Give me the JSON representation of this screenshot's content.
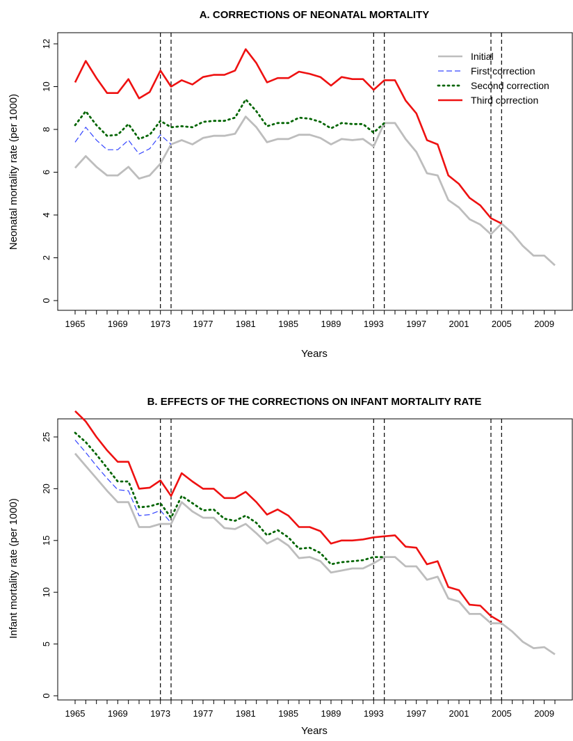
{
  "chart_data": [
    {
      "type": "line",
      "title": "A. CORRECTIONS OF NEONATAL MORTALITY",
      "xlabel": "Years",
      "ylabel": "Neonatal mortality rate (per 1000)",
      "xlim": [
        1965,
        2010
      ],
      "ylim": [
        0,
        12
      ],
      "x_ticks": [
        "1965",
        "1969",
        "1973",
        "1977",
        "1981",
        "1985",
        "1989",
        "1993",
        "1997",
        "2001",
        "2005",
        "2009"
      ],
      "y_ticks": [
        "0",
        "2",
        "4",
        "6",
        "8",
        "10",
        "12"
      ],
      "vlines": [
        1973,
        1974,
        1993,
        1994,
        2004,
        2005
      ],
      "legend_position": "top-right",
      "series": [
        {
          "name": "Initial",
          "color": "#bdbdbd",
          "style": "solid",
          "x": [
            1965,
            1966,
            1967,
            1968,
            1969,
            1970,
            1971,
            1972,
            1973,
            1974,
            1975,
            1976,
            1977,
            1978,
            1979,
            1980,
            1981,
            1982,
            1983,
            1984,
            1985,
            1986,
            1987,
            1988,
            1989,
            1990,
            1991,
            1992,
            1993,
            1994,
            1995,
            1996,
            1997,
            1998,
            1999,
            2000,
            2001,
            2002,
            2003,
            2004,
            2005,
            2006,
            2007,
            2008,
            2009,
            2010
          ],
          "values": [
            6.2,
            6.75,
            6.25,
            5.85,
            5.85,
            6.25,
            5.7,
            5.85,
            6.4,
            7.3,
            7.5,
            7.3,
            7.6,
            7.7,
            7.7,
            7.8,
            8.6,
            8.1,
            7.4,
            7.55,
            7.55,
            7.75,
            7.75,
            7.6,
            7.3,
            7.55,
            7.5,
            7.55,
            7.2,
            8.3,
            8.3,
            7.55,
            6.95,
            5.95,
            5.85,
            4.7,
            4.35,
            3.8,
            3.55,
            3.1,
            3.6,
            3.15,
            2.55,
            2.1,
            2.1,
            1.65
          ]
        },
        {
          "name": "First correction",
          "color": "#3344ff",
          "style": "dashed",
          "x": [
            1965,
            1966,
            1967,
            1968,
            1969,
            1970,
            1971,
            1972,
            1973,
            1974
          ],
          "values": [
            7.4,
            8.1,
            7.5,
            7.05,
            7.05,
            7.5,
            6.85,
            7.1,
            7.75,
            7.3
          ]
        },
        {
          "name": "Second correction",
          "color": "#006400",
          "style": "dotted",
          "x": [
            1965,
            1966,
            1967,
            1968,
            1969,
            1970,
            1971,
            1972,
            1973,
            1974,
            1975,
            1976,
            1977,
            1978,
            1979,
            1980,
            1981,
            1982,
            1983,
            1984,
            1985,
            1986,
            1987,
            1988,
            1989,
            1990,
            1991,
            1992,
            1993,
            1994
          ],
          "values": [
            8.2,
            8.85,
            8.2,
            7.7,
            7.75,
            8.25,
            7.55,
            7.75,
            8.4,
            8.1,
            8.15,
            8.1,
            8.35,
            8.4,
            8.4,
            8.55,
            9.4,
            8.85,
            8.15,
            8.3,
            8.3,
            8.55,
            8.5,
            8.35,
            8.05,
            8.3,
            8.25,
            8.25,
            7.85,
            8.3
          ]
        },
        {
          "name": "Third correction",
          "color": "#ee1111",
          "style": "solid",
          "x": [
            1965,
            1966,
            1967,
            1968,
            1969,
            1970,
            1971,
            1972,
            1973,
            1974,
            1975,
            1976,
            1977,
            1978,
            1979,
            1980,
            1981,
            1982,
            1983,
            1984,
            1985,
            1986,
            1987,
            1988,
            1989,
            1990,
            1991,
            1992,
            1993,
            1994,
            1995,
            1996,
            1997,
            1998,
            1999,
            2000,
            2001,
            2002,
            2003,
            2004,
            2005
          ],
          "values": [
            10.2,
            11.2,
            10.4,
            9.7,
            9.7,
            10.35,
            9.45,
            9.75,
            10.75,
            10.0,
            10.3,
            10.1,
            10.45,
            10.55,
            10.55,
            10.75,
            11.75,
            11.1,
            10.2,
            10.4,
            10.4,
            10.7,
            10.6,
            10.45,
            10.05,
            10.45,
            10.35,
            10.35,
            9.85,
            10.3,
            10.3,
            9.35,
            8.75,
            7.5,
            7.3,
            5.85,
            5.45,
            4.8,
            4.45,
            3.85,
            3.6
          ]
        }
      ]
    },
    {
      "type": "line",
      "title": "B. EFFECTS OF THE CORRECTIONS ON INFANT MORTALITY RATE",
      "xlabel": "Years",
      "ylabel": "Infant mortality rate (per 1000)",
      "xlim": [
        1965,
        2010
      ],
      "ylim": [
        0,
        27.5
      ],
      "x_ticks": [
        "1965",
        "1969",
        "1973",
        "1977",
        "1981",
        "1985",
        "1989",
        "1993",
        "1997",
        "2001",
        "2005",
        "2009"
      ],
      "y_ticks": [
        "0",
        "5",
        "10",
        "15",
        "20",
        "25"
      ],
      "vlines": [
        1973,
        1974,
        1993,
        1994,
        2004,
        2005
      ],
      "series": [
        {
          "name": "Initial",
          "color": "#bdbdbd",
          "style": "solid",
          "x": [
            1965,
            1966,
            1967,
            1968,
            1969,
            1970,
            1971,
            1972,
            1973,
            1974,
            1975,
            1976,
            1977,
            1978,
            1979,
            1980,
            1981,
            1982,
            1983,
            1984,
            1985,
            1986,
            1987,
            1988,
            1989,
            1990,
            1991,
            1992,
            1993,
            1994,
            1995,
            1996,
            1997,
            1998,
            1999,
            2000,
            2001,
            2002,
            2003,
            2004,
            2005,
            2006,
            2007,
            2008,
            2009,
            2010
          ],
          "values": [
            23.4,
            22.2,
            21.0,
            19.8,
            18.7,
            18.7,
            16.3,
            16.3,
            16.6,
            16.6,
            18.7,
            17.8,
            17.2,
            17.2,
            16.2,
            16.1,
            16.6,
            15.7,
            14.7,
            15.2,
            14.5,
            13.3,
            13.4,
            13.0,
            11.9,
            12.1,
            12.3,
            12.3,
            12.8,
            13.4,
            13.4,
            12.5,
            12.5,
            11.2,
            11.5,
            9.4,
            9.1,
            7.9,
            7.9,
            7.0,
            7.0,
            6.2,
            5.2,
            4.6,
            4.7,
            4.0
          ]
        },
        {
          "name": "First correction",
          "color": "#3344ff",
          "style": "dashed",
          "x": [
            1965,
            1966,
            1967,
            1968,
            1969,
            1970,
            1971,
            1972,
            1973,
            1974
          ],
          "values": [
            24.7,
            23.5,
            22.2,
            21.0,
            19.9,
            19.8,
            17.4,
            17.5,
            17.9,
            16.7
          ]
        },
        {
          "name": "Second correction",
          "color": "#006400",
          "style": "dotted",
          "x": [
            1965,
            1966,
            1967,
            1968,
            1969,
            1970,
            1971,
            1972,
            1973,
            1974,
            1975,
            1976,
            1977,
            1978,
            1979,
            1980,
            1981,
            1982,
            1983,
            1984,
            1985,
            1986,
            1987,
            1988,
            1989,
            1990,
            1991,
            1992,
            1993,
            1994
          ],
          "values": [
            25.4,
            24.5,
            23.3,
            22.0,
            20.7,
            20.7,
            18.2,
            18.3,
            18.6,
            17.2,
            19.3,
            18.6,
            17.9,
            18.0,
            17.1,
            16.9,
            17.4,
            16.7,
            15.5,
            16.0,
            15.3,
            14.2,
            14.3,
            13.8,
            12.7,
            12.9,
            13.0,
            13.1,
            13.4,
            13.4
          ]
        },
        {
          "name": "Third correction",
          "color": "#ee1111",
          "style": "solid",
          "x": [
            1965,
            1966,
            1967,
            1968,
            1969,
            1970,
            1971,
            1972,
            1973,
            1974,
            1975,
            1976,
            1977,
            1978,
            1979,
            1980,
            1981,
            1982,
            1983,
            1984,
            1985,
            1986,
            1987,
            1988,
            1989,
            1990,
            1991,
            1992,
            1993,
            1994,
            1995,
            1996,
            1997,
            1998,
            1999,
            2000,
            2001,
            2002,
            2003,
            2004,
            2005
          ],
          "values": [
            27.5,
            26.5,
            25.0,
            23.7,
            22.6,
            22.6,
            20.0,
            20.1,
            20.8,
            19.3,
            21.5,
            20.7,
            20.0,
            20.0,
            19.1,
            19.1,
            19.7,
            18.7,
            17.5,
            18.0,
            17.4,
            16.3,
            16.3,
            15.9,
            14.7,
            15.0,
            15.0,
            15.1,
            15.3,
            15.4,
            15.5,
            14.4,
            14.3,
            12.7,
            13.0,
            10.5,
            10.2,
            8.8,
            8.7,
            7.7,
            7.1
          ]
        }
      ]
    }
  ]
}
